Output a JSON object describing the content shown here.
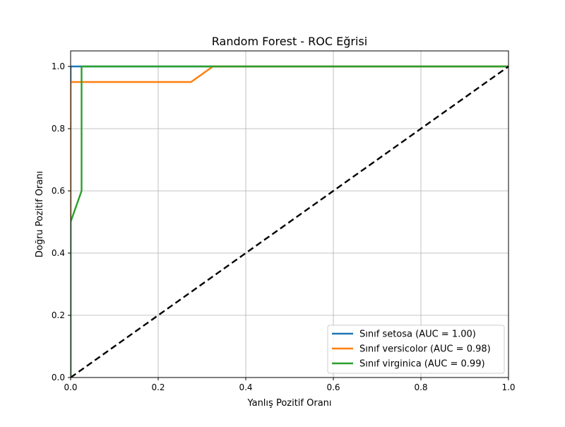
{
  "chart_data": {
    "type": "line",
    "title": "Random Forest - ROC Eğrisi",
    "xlabel": "Yanlış Pozitif Oranı",
    "ylabel": "Doğru Pozitif Oranı",
    "xlim": [
      0.0,
      1.0
    ],
    "ylim": [
      0.0,
      1.05
    ],
    "xticks": [
      0.0,
      0.2,
      0.4,
      0.6,
      0.8,
      1.0
    ],
    "yticks": [
      0.0,
      0.2,
      0.4,
      0.6,
      0.8,
      1.0
    ],
    "xtick_labels": [
      "0.0",
      "0.2",
      "0.4",
      "0.6",
      "0.8",
      "1.0"
    ],
    "ytick_labels": [
      "0.0",
      "0.2",
      "0.4",
      "0.6",
      "0.8",
      "1.0"
    ],
    "grid": true,
    "legend_position": "lower-right",
    "series": [
      {
        "name": "Sınıf setosa (AUC = 1.00)",
        "color": "#1f77b4",
        "x": [
          0.0,
          0.0,
          1.0
        ],
        "y": [
          0.0,
          1.0,
          1.0
        ]
      },
      {
        "name": "Sınıf versicolor (AUC = 0.98)",
        "color": "#ff7f0e",
        "x": [
          0.0,
          0.0,
          0.275,
          0.325,
          1.0
        ],
        "y": [
          0.0,
          0.95,
          0.95,
          1.0,
          1.0
        ]
      },
      {
        "name": "Sınıf virginica (AUC = 0.99)",
        "color": "#2ca02c",
        "x": [
          0.0,
          0.0,
          0.025,
          0.025,
          1.0
        ],
        "y": [
          0.0,
          0.5,
          0.6,
          1.0,
          1.0
        ]
      }
    ],
    "reference_line": {
      "x": [
        0.0,
        1.0
      ],
      "y": [
        0.0,
        1.0
      ],
      "color": "#000000",
      "style": "dashed"
    }
  }
}
